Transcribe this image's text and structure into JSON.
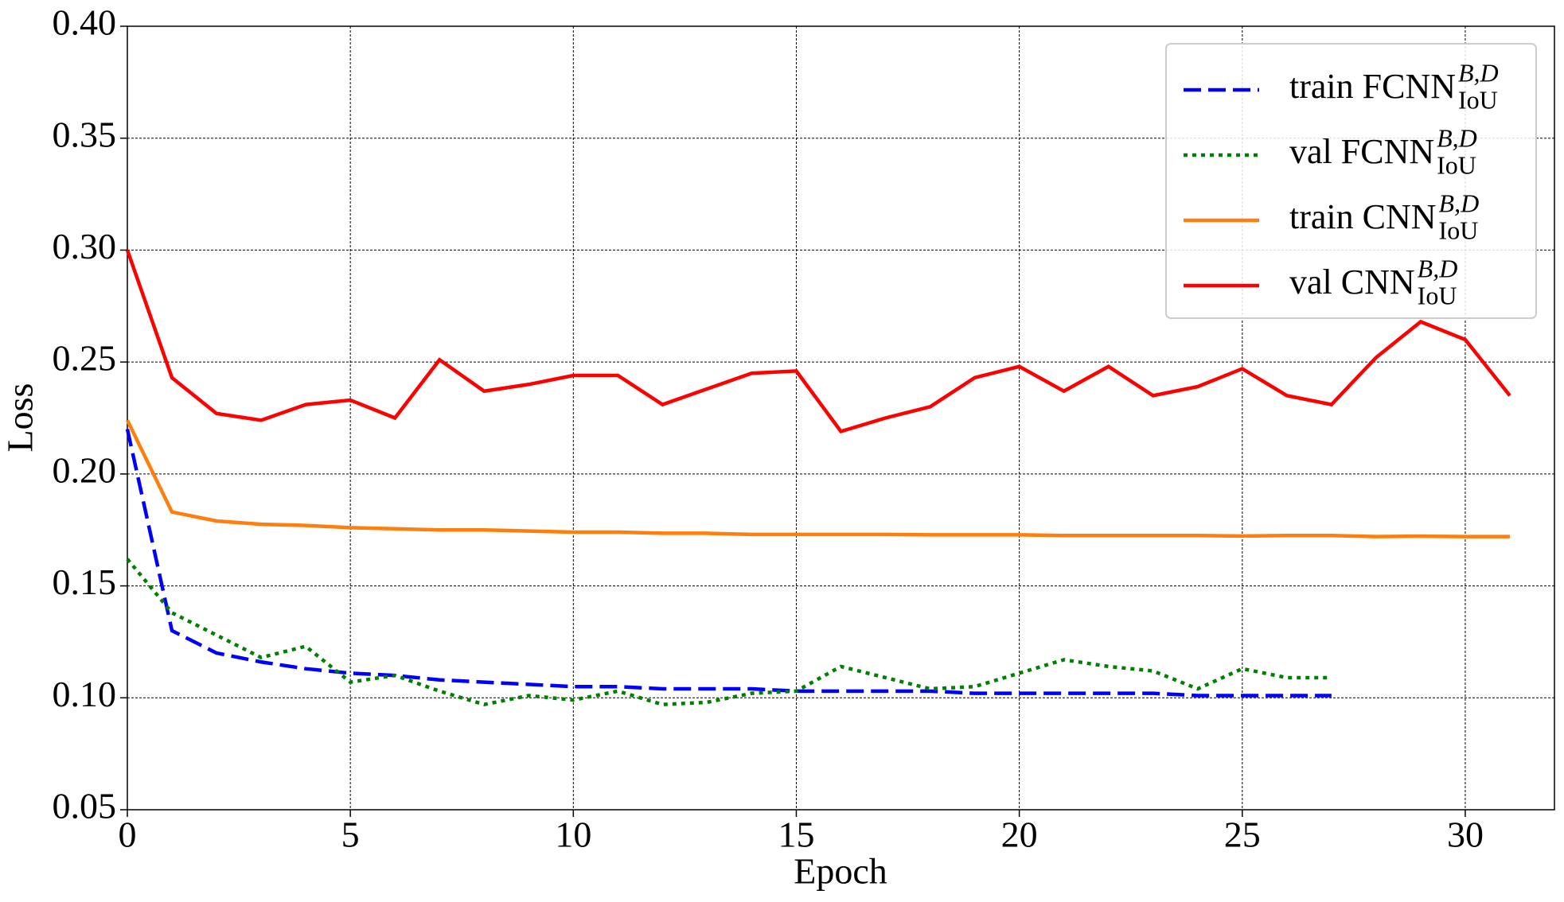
{
  "chart_data": {
    "type": "line",
    "x_label": "Epoch",
    "y_label": "Loss",
    "xlim": [
      0,
      32
    ],
    "ylim": [
      0.05,
      0.4
    ],
    "xticks": [
      0,
      5,
      10,
      15,
      20,
      25,
      30
    ],
    "yticks": [
      {
        "value": 0.05,
        "label": "0.05"
      },
      {
        "value": 0.1,
        "label": "0.10"
      },
      {
        "value": 0.15,
        "label": "0.15"
      },
      {
        "value": 0.2,
        "label": "0.20"
      },
      {
        "value": 0.25,
        "label": "0.25"
      },
      {
        "value": 0.3,
        "label": "0.30"
      },
      {
        "value": 0.35,
        "label": "0.35"
      },
      {
        "value": 0.4,
        "label": "0.40"
      }
    ],
    "grid": true,
    "legend": "upper right",
    "series": [
      {
        "name": "train FCNN",
        "name_sup": "B,D",
        "name_sub": "IoU",
        "color": "#0000ff",
        "style": "dashed",
        "x": [
          0,
          1,
          2,
          3,
          4,
          5,
          6,
          7,
          8,
          9,
          10,
          11,
          12,
          13,
          14,
          15,
          16,
          17,
          18,
          19,
          20,
          21,
          22,
          23,
          24,
          25,
          26,
          27
        ],
        "values": [
          0.22,
          0.13,
          0.12,
          0.116,
          0.113,
          0.111,
          0.11,
          0.108,
          0.107,
          0.106,
          0.105,
          0.105,
          0.104,
          0.104,
          0.104,
          0.103,
          0.103,
          0.103,
          0.103,
          0.102,
          0.102,
          0.102,
          0.102,
          0.102,
          0.101,
          0.101,
          0.101,
          0.101
        ]
      },
      {
        "name": "val FCNN",
        "name_sup": "B,D",
        "name_sub": "IoU",
        "color": "#008000",
        "style": "dotted",
        "x": [
          0,
          1,
          2,
          3,
          4,
          5,
          6,
          7,
          8,
          9,
          10,
          11,
          12,
          13,
          14,
          15,
          16,
          17,
          18,
          19,
          20,
          21,
          22,
          23,
          24,
          25,
          26,
          27
        ],
        "values": [
          0.162,
          0.138,
          0.128,
          0.118,
          0.123,
          0.107,
          0.11,
          0.103,
          0.097,
          0.101,
          0.099,
          0.103,
          0.097,
          0.098,
          0.102,
          0.103,
          0.114,
          0.109,
          0.104,
          0.105,
          0.111,
          0.117,
          0.114,
          0.112,
          0.104,
          0.113,
          0.109,
          0.109
        ]
      },
      {
        "name": "train CNN",
        "name_sup": "B,D",
        "name_sub": "IoU",
        "color": "#ff7f0e",
        "style": "solid",
        "x": [
          0,
          1,
          2,
          3,
          4,
          5,
          6,
          7,
          8,
          9,
          10,
          11,
          12,
          13,
          14,
          15,
          16,
          17,
          18,
          19,
          20,
          21,
          22,
          23,
          24,
          25,
          26,
          27,
          28,
          29,
          30,
          31
        ],
        "values": [
          0.224,
          0.183,
          0.179,
          0.1775,
          0.177,
          0.176,
          0.1755,
          0.175,
          0.175,
          0.1745,
          0.174,
          0.174,
          0.1735,
          0.1735,
          0.173,
          0.173,
          0.173,
          0.173,
          0.1728,
          0.1728,
          0.1728,
          0.1725,
          0.1725,
          0.1725,
          0.1725,
          0.1723,
          0.1725,
          0.1725,
          0.172,
          0.1722,
          0.172,
          0.172
        ]
      },
      {
        "name": "val CNN",
        "name_sup": "B,D",
        "name_sub": "IoU",
        "color": "#ff0000",
        "style": "solid",
        "x": [
          0,
          1,
          2,
          3,
          4,
          5,
          6,
          7,
          8,
          9,
          10,
          11,
          12,
          13,
          14,
          15,
          16,
          17,
          18,
          19,
          20,
          21,
          22,
          23,
          24,
          25,
          26,
          27,
          28,
          29,
          30,
          31
        ],
        "values": [
          0.3,
          0.243,
          0.227,
          0.224,
          0.231,
          0.233,
          0.225,
          0.251,
          0.237,
          0.24,
          0.244,
          0.244,
          0.231,
          0.238,
          0.245,
          0.246,
          0.219,
          0.225,
          0.23,
          0.243,
          0.248,
          0.237,
          0.248,
          0.235,
          0.239,
          0.247,
          0.235,
          0.231,
          0.252,
          0.268,
          0.26,
          0.235
        ]
      }
    ]
  }
}
